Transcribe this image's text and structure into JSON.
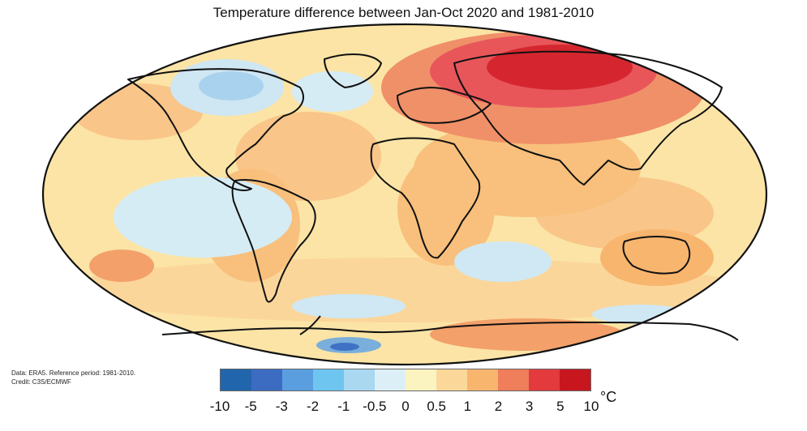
{
  "title": "Temperature difference between Jan-Oct 2020 and 1981-2010",
  "credits": {
    "data_line": "Data: ERA5.  Reference period: 1981-2010.",
    "credit_line": "Credit: C3S/ECMWF"
  },
  "legend": {
    "unit": "°C",
    "colors": [
      "#2166ac",
      "#3c6cc1",
      "#5a9ee0",
      "#6ec6f0",
      "#a9d8f0",
      "#dceff6",
      "#fbf3c0",
      "#fbd89a",
      "#f8b56e",
      "#ef7e5a",
      "#e33a3d",
      "#c8161f"
    ],
    "ticks": [
      "-10",
      "-5",
      "-3",
      "-2",
      "-1",
      "-0.5",
      "0",
      "0.5",
      "1",
      "2",
      "3",
      "5",
      "10"
    ]
  }
}
